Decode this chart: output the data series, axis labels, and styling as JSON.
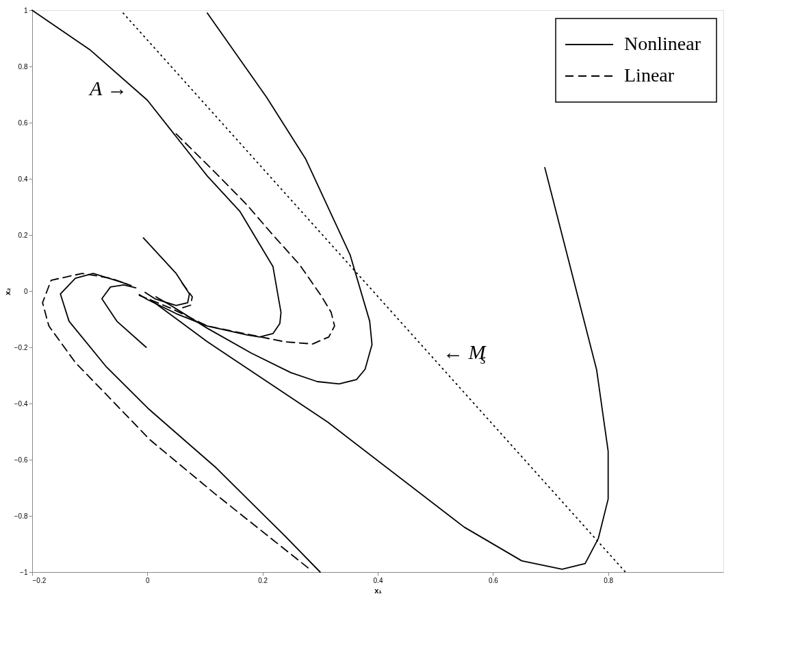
{
  "chart_data": {
    "type": "line",
    "xlabel": "x₁",
    "ylabel": "x₂",
    "xlim": [
      -0.2,
      1.0
    ],
    "ylim": [
      -1,
      1
    ],
    "xticks": [
      -0.2,
      0,
      0.2,
      0.4,
      0.6,
      0.8
    ],
    "yticks": [
      -1,
      -0.8,
      -0.6,
      -0.4,
      -0.2,
      0,
      0.2,
      0.4,
      0.6,
      0.8,
      1
    ],
    "grid": false,
    "legend": "top right",
    "marker": "none",
    "color": "#000000",
    "annotations": [
      "A →",
      "← M$_{s}$"
    ],
    "series": [
      {
        "name": "Nonlinear",
        "line_style": "solid",
        "x": [
          -0.2,
          -0.1,
          0.0,
          0.05,
          0.104,
          0.161,
          0.218,
          0.232,
          0.23,
          0.218,
          0.195,
          0.173,
          0.104,
          0.05,
          0.0,
          -0.014
        ],
        "values": [
          1.0,
          0.86,
          0.68,
          0.55,
          0.41,
          0.283,
          0.088,
          -0.076,
          -0.115,
          -0.151,
          -0.163,
          -0.156,
          -0.124,
          -0.08,
          -0.03,
          -0.012
        ]
      },
      {
        "line_style": "solid",
        "x": [
          0.104,
          0.207,
          0.275,
          0.321,
          0.352,
          0.386,
          0.39,
          0.378,
          0.363,
          0.333,
          0.295,
          0.249,
          0.18,
          0.104,
          0.04,
          0.015
        ],
        "values": [
          0.99,
          0.69,
          0.47,
          0.266,
          0.129,
          -0.107,
          -0.19,
          -0.278,
          -0.315,
          -0.33,
          -0.322,
          -0.29,
          -0.22,
          -0.132,
          -0.05,
          -0.02
        ]
      },
      {
        "line_style": "solid",
        "x": [
          -0.007,
          0.05,
          0.073,
          0.07,
          0.05,
          0.013,
          -0.004
        ],
        "values": [
          0.19,
          0.063,
          -0.01,
          -0.041,
          -0.051,
          -0.027,
          -0.004
        ]
      },
      {
        "line_style": "solid",
        "x": [
          -0.002,
          -0.053,
          -0.079,
          -0.064,
          -0.041,
          -0.02
        ],
        "values": [
          -0.2,
          -0.107,
          -0.027,
          0.015,
          0.022,
          0.012
        ]
      },
      {
        "line_style": "solid",
        "x": [
          0.3,
          0.238,
          0.12,
          0.001,
          -0.071,
          -0.136,
          -0.151,
          -0.125,
          -0.094,
          -0.045,
          -0.028
        ],
        "values": [
          -1.0,
          -0.87,
          -0.63,
          -0.417,
          -0.27,
          -0.107,
          -0.01,
          0.046,
          0.063,
          0.032,
          0.02
        ]
      },
      {
        "line_style": "solid",
        "x": [
          0.005,
          0.104,
          0.313,
          0.55,
          0.65,
          0.72,
          0.76,
          0.783,
          0.8,
          0.8,
          0.78,
          0.73,
          0.69
        ],
        "values": [
          -0.03,
          -0.18,
          -0.466,
          -0.84,
          -0.96,
          -0.99,
          -0.97,
          -0.88,
          -0.74,
          -0.57,
          -0.28,
          0.12,
          0.44
        ]
      },
      {
        "name": "Linear",
        "line_style": "dashed",
        "x": [
          0.05,
          0.119,
          0.173,
          0.218,
          0.264,
          0.302,
          0.319,
          0.325,
          0.315,
          0.287,
          0.238,
          0.18,
          0.104,
          0.04,
          -0.014
        ],
        "values": [
          0.56,
          0.42,
          0.307,
          0.2,
          0.095,
          -0.017,
          -0.075,
          -0.124,
          -0.163,
          -0.188,
          -0.18,
          -0.156,
          -0.124,
          -0.06,
          -0.015
        ]
      },
      {
        "line_style": "dashed",
        "x": [
          0.06,
          0.078,
          0.075,
          0.06
        ],
        "values": [
          0.03,
          -0.02,
          -0.05,
          -0.06
        ]
      },
      {
        "line_style": "dashed",
        "x": [
          0.279,
          0.119,
          0.005,
          -0.125,
          -0.171,
          -0.182,
          -0.167,
          -0.113,
          -0.064,
          -0.036
        ],
        "values": [
          -0.985,
          -0.724,
          -0.53,
          -0.254,
          -0.124,
          -0.041,
          0.039,
          0.063,
          0.046,
          0.026
        ]
      },
      {
        "line_style": "dotted",
        "x": [
          -0.042,
          0.83
        ],
        "values": [
          0.99,
          -1.0
        ]
      }
    ]
  }
}
